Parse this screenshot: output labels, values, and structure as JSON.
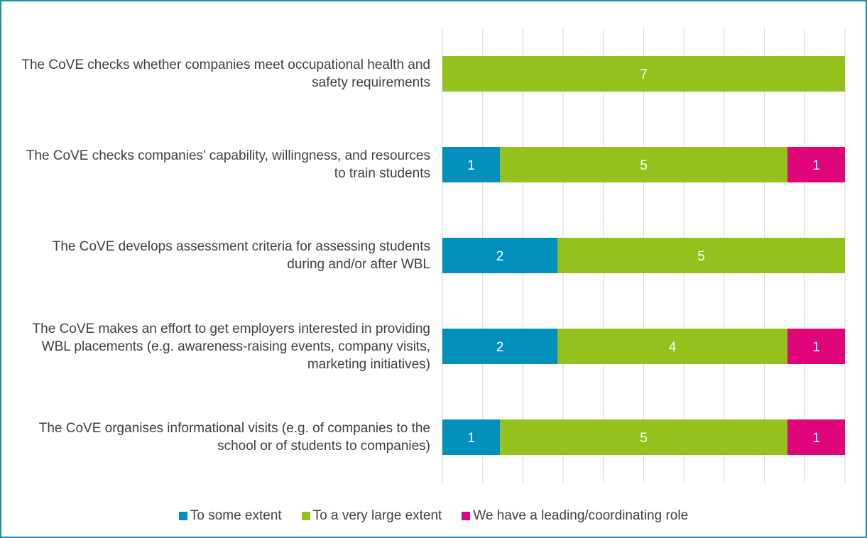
{
  "chart_data": {
    "type": "stacked-barh",
    "categories": [
      "The CoVE checks whether companies meet occupational health and safety requirements",
      "The CoVE checks companies’ capability, willingness, and resources to train students",
      "The CoVE develops assessment criteria for assessing students during and/or after WBL",
      "The CoVE makes an effort to get employers interested in providing WBL placements (e.g. awareness-raising events, company visits, marketing initiatives)",
      "The CoVE organises informational visits (e.g. of companies to the school or of students to companies)"
    ],
    "series": [
      {
        "name": "To some extent",
        "color": "#0090bb",
        "values": [
          null,
          1,
          2,
          2,
          1
        ]
      },
      {
        "name": "To a very large extent",
        "color": "#95c11f",
        "values": [
          7,
          5,
          5,
          4,
          5
        ]
      },
      {
        "name": "We have a leading/coordinating role",
        "color": "#e0047a",
        "values": [
          null,
          1,
          null,
          1,
          1
        ]
      }
    ],
    "xlim": [
      0,
      7
    ],
    "xticks": [
      0,
      0.7,
      1.4,
      2.1,
      2.8,
      3.5,
      4.2,
      4.9,
      5.6,
      6.3,
      7
    ],
    "grid": true,
    "legend": "bottom"
  }
}
